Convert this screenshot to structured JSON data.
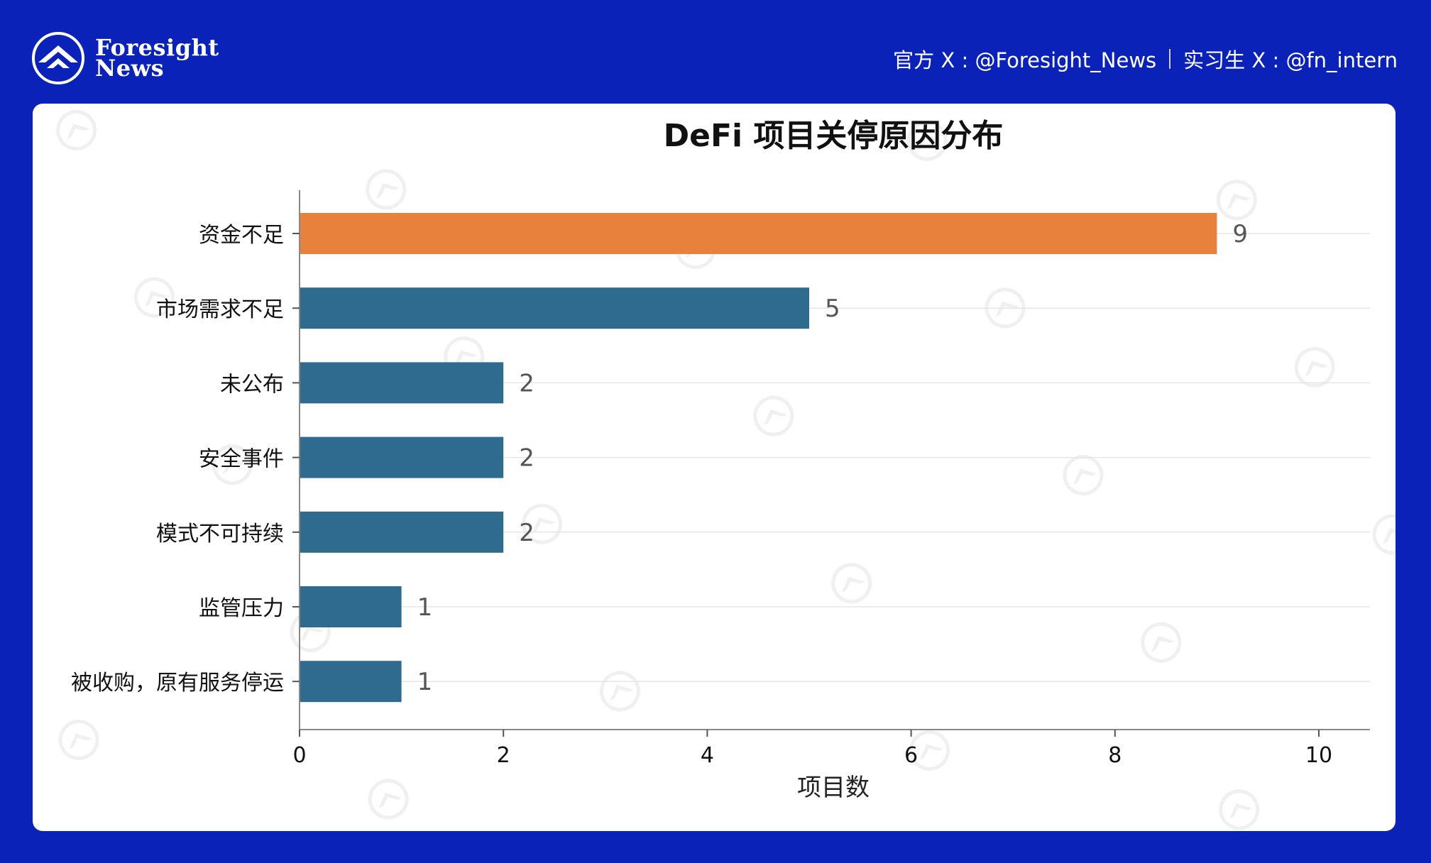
{
  "brand": {
    "name_line1": "Foresight",
    "name_line2": "News"
  },
  "social": {
    "official": "官方 X : @Foresight_News",
    "intern": "实习生 X : @fn_intern"
  },
  "colors": {
    "background": "#0a22b8",
    "card": "#ffffff",
    "highlight_bar": "#e8813c",
    "bar": "#2e6b8e"
  },
  "chart_data": {
    "type": "bar",
    "orientation": "horizontal",
    "title": "DeFi 项目关停原因分布",
    "xlabel": "项目数",
    "ylabel": "",
    "xlim": [
      0,
      10.5
    ],
    "xticks": [
      0,
      2,
      4,
      6,
      8,
      10
    ],
    "grid": "horizontal",
    "categories": [
      "资金不足",
      "市场需求不足",
      "未公布",
      "安全事件",
      "模式不可持续",
      "监管压力",
      "被收购，原有服务停运"
    ],
    "values": [
      9,
      5,
      2,
      2,
      2,
      1,
      1
    ],
    "highlighted": "资金不足",
    "data_labels": true
  }
}
